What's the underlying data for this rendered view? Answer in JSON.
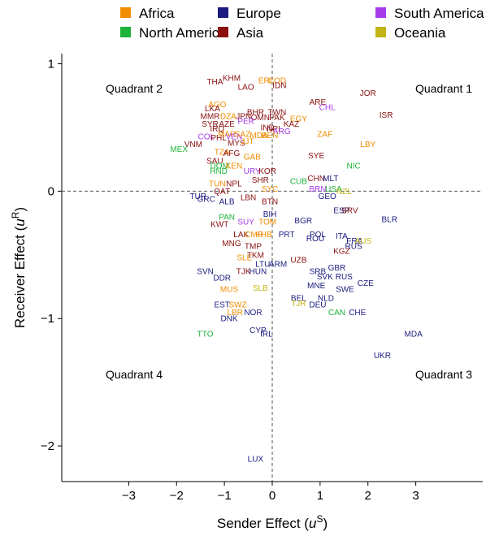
{
  "chart_data": {
    "type": "scatter",
    "xlabel": "Sender Effect (u^S)",
    "ylabel": "Receiver Effect (u^R)",
    "xlabel_parts": {
      "text": "Sender Effect (",
      "var": "u",
      "sup": "S",
      "close": ")"
    },
    "ylabel_parts": {
      "text": "Receiver Effect (",
      "var": "u",
      "sup": "R",
      "close": ")"
    },
    "xlim": [
      -4.4,
      4.4
    ],
    "ylim": [
      -2.28,
      1.08
    ],
    "x_ticks": [
      -3,
      -2,
      -1,
      0,
      1,
      2,
      3
    ],
    "y_ticks": [
      1,
      0,
      -1,
      -2
    ],
    "x_tick_labels": [
      "−3",
      "−2",
      "−1",
      "0",
      "1",
      "2",
      "3"
    ],
    "y_tick_labels": [
      "1",
      "0",
      "−1",
      "−2"
    ],
    "reference_lines": {
      "x": 0,
      "y": 0,
      "style": "dashed"
    },
    "grid": false,
    "legend_position": "top",
    "legend": [
      {
        "name": "Africa",
        "color": "#F28C00"
      },
      {
        "name": "North America",
        "color": "#1DB33A"
      },
      {
        "name": "Europe",
        "color": "#1A1A80"
      },
      {
        "name": "Asia",
        "color": "#8B0F0F"
      },
      {
        "name": "South America",
        "color": "#A53BEB"
      },
      {
        "name": "Oceania",
        "color": "#C2B414"
      }
    ],
    "quadrant_labels": [
      {
        "text": "Quadrant 1",
        "position": "top-right"
      },
      {
        "text": "Quadrant 2",
        "position": "top-left"
      },
      {
        "text": "Quadrant 3",
        "position": "bottom-right"
      },
      {
        "text": "Quadrant 4",
        "position": "bottom-left"
      }
    ],
    "points": [
      {
        "label": "THA",
        "region": "Asia",
        "x": -1.2,
        "y": 0.86
      },
      {
        "label": "KHM",
        "region": "Asia",
        "x": -0.85,
        "y": 0.89
      },
      {
        "label": "LAO",
        "region": "Asia",
        "x": -0.55,
        "y": 0.82
      },
      {
        "label": "ERI",
        "region": "Africa",
        "x": -0.15,
        "y": 0.87
      },
      {
        "label": "COD",
        "region": "Africa",
        "x": 0.1,
        "y": 0.87
      },
      {
        "label": "IDN",
        "region": "Asia",
        "x": 0.15,
        "y": 0.83
      },
      {
        "label": "JOR",
        "region": "Asia",
        "x": 2.0,
        "y": 0.77
      },
      {
        "label": "ARE",
        "region": "Asia",
        "x": 0.95,
        "y": 0.7
      },
      {
        "label": "CHL",
        "region": "South America",
        "x": 1.15,
        "y": 0.66
      },
      {
        "label": "AGO",
        "region": "Africa",
        "x": -1.15,
        "y": 0.68
      },
      {
        "label": "LKA",
        "region": "Asia",
        "x": -1.25,
        "y": 0.65
      },
      {
        "label": "TWN",
        "region": "Asia",
        "x": 0.1,
        "y": 0.62
      },
      {
        "label": "ISR",
        "region": "Asia",
        "x": 2.38,
        "y": 0.6
      },
      {
        "label": "MMR",
        "region": "Asia",
        "x": -1.3,
        "y": 0.59
      },
      {
        "label": "DZA",
        "region": "Africa",
        "x": -0.92,
        "y": 0.59
      },
      {
        "label": "JPN",
        "region": "Asia",
        "x": -0.6,
        "y": 0.59
      },
      {
        "label": "BHR",
        "region": "Asia",
        "x": -0.35,
        "y": 0.62
      },
      {
        "label": "OMN",
        "region": "Asia",
        "x": -0.25,
        "y": 0.58
      },
      {
        "label": "PAK",
        "region": "Asia",
        "x": 0.1,
        "y": 0.58
      },
      {
        "label": "EGY",
        "region": "Africa",
        "x": 0.55,
        "y": 0.57
      },
      {
        "label": "SYR",
        "region": "Asia",
        "x": -1.3,
        "y": 0.53
      },
      {
        "label": "AZE",
        "region": "Asia",
        "x": -0.95,
        "y": 0.53
      },
      {
        "label": "PER",
        "region": "South America",
        "x": -0.55,
        "y": 0.55
      },
      {
        "label": "KAZ",
        "region": "Asia",
        "x": 0.4,
        "y": 0.53
      },
      {
        "label": "IRQ",
        "region": "Asia",
        "x": -1.15,
        "y": 0.49
      },
      {
        "label": "IND",
        "region": "Asia",
        "x": -0.1,
        "y": 0.5
      },
      {
        "label": "NPL",
        "region": "Asia",
        "x": 0.05,
        "y": 0.49
      },
      {
        "label": "ARG",
        "region": "South America",
        "x": 0.2,
        "y": 0.47
      },
      {
        "label": "ZAF",
        "region": "Africa",
        "x": 1.1,
        "y": 0.45
      },
      {
        "label": "COL",
        "region": "South America",
        "x": -1.38,
        "y": 0.43
      },
      {
        "label": "PHL",
        "region": "Asia",
        "x": -1.12,
        "y": 0.42
      },
      {
        "label": "MAR",
        "region": "Africa",
        "x": -0.95,
        "y": 0.45
      },
      {
        "label": "VEN",
        "region": "South America",
        "x": -0.8,
        "y": 0.43
      },
      {
        "label": "SAZ",
        "region": "Africa",
        "x": -0.62,
        "y": 0.45
      },
      {
        "label": "MDA",
        "region": "Africa",
        "x": -0.28,
        "y": 0.44
      },
      {
        "label": "BEN",
        "region": "Africa",
        "x": -0.05,
        "y": 0.44
      },
      {
        "label": "MYS",
        "region": "Asia",
        "x": -0.75,
        "y": 0.38
      },
      {
        "label": "JJT",
        "region": "Africa",
        "x": -0.52,
        "y": 0.39
      },
      {
        "label": "VNM",
        "region": "Asia",
        "x": -1.65,
        "y": 0.37
      },
      {
        "label": "LBY",
        "region": "Africa",
        "x": 2.0,
        "y": 0.37
      },
      {
        "label": "MEX",
        "region": "North America",
        "x": -1.95,
        "y": 0.33
      },
      {
        "label": "TZA",
        "region": "Africa",
        "x": -1.05,
        "y": 0.31
      },
      {
        "label": "AFG",
        "region": "Asia",
        "x": -0.85,
        "y": 0.3
      },
      {
        "label": "SYE",
        "region": "Asia",
        "x": 0.92,
        "y": 0.28
      },
      {
        "label": "GAB",
        "region": "Africa",
        "x": -0.42,
        "y": 0.27
      },
      {
        "label": "SAU",
        "region": "Asia",
        "x": -1.2,
        "y": 0.24
      },
      {
        "label": "NIC",
        "region": "North America",
        "x": 1.7,
        "y": 0.2
      },
      {
        "label": "DOM",
        "region": "North America",
        "x": -1.1,
        "y": 0.2
      },
      {
        "label": "KEN",
        "region": "Africa",
        "x": -0.8,
        "y": 0.2
      },
      {
        "label": "HND",
        "region": "North America",
        "x": -1.12,
        "y": 0.16
      },
      {
        "label": "URY",
        "region": "South America",
        "x": -0.42,
        "y": 0.16
      },
      {
        "label": "KOR",
        "region": "Asia",
        "x": -0.1,
        "y": 0.16
      },
      {
        "label": "CUB",
        "region": "North America",
        "x": 0.55,
        "y": 0.08
      },
      {
        "label": "CHN",
        "region": "Asia",
        "x": 0.92,
        "y": 0.1
      },
      {
        "label": "MLT",
        "region": "Europe",
        "x": 1.22,
        "y": 0.1
      },
      {
        "label": "TUN",
        "region": "Africa",
        "x": -1.15,
        "y": 0.06
      },
      {
        "label": "NPL",
        "region": "Asia",
        "x": -0.8,
        "y": 0.06
      },
      {
        "label": "SHR",
        "region": "Asia",
        "x": -0.25,
        "y": 0.09
      },
      {
        "label": "BRN",
        "region": "South America",
        "x": 0.95,
        "y": 0.02
      },
      {
        "label": "USA",
        "region": "North America",
        "x": 1.28,
        "y": 0.02
      },
      {
        "label": "QAT",
        "region": "Asia",
        "x": -1.05,
        "y": 0.0
      },
      {
        "label": "SYC",
        "region": "Africa",
        "x": -0.05,
        "y": 0.02
      },
      {
        "label": "NZL",
        "region": "Oceania",
        "x": 1.5,
        "y": 0.0
      },
      {
        "label": "GEO",
        "region": "Europe",
        "x": 1.15,
        "y": -0.04
      },
      {
        "label": "TUR",
        "region": "Europe",
        "x": -1.55,
        "y": -0.04
      },
      {
        "label": "GRC",
        "region": "Europe",
        "x": -1.38,
        "y": -0.06
      },
      {
        "label": "ALB",
        "region": "Europe",
        "x": -0.95,
        "y": -0.08
      },
      {
        "label": "LBN",
        "region": "Asia",
        "x": -0.5,
        "y": -0.05
      },
      {
        "label": "BTN",
        "region": "Asia",
        "x": -0.05,
        "y": -0.08
      },
      {
        "label": "ESP",
        "region": "Europe",
        "x": 1.45,
        "y": -0.15
      },
      {
        "label": "SRV",
        "region": "Asia",
        "x": 1.62,
        "y": -0.15
      },
      {
        "label": "BIH",
        "region": "Europe",
        "x": -0.05,
        "y": -0.18
      },
      {
        "label": "PAN",
        "region": "North America",
        "x": -0.95,
        "y": -0.2
      },
      {
        "label": "BLR",
        "region": "Europe",
        "x": 2.45,
        "y": -0.22
      },
      {
        "label": "BGR",
        "region": "Europe",
        "x": 0.65,
        "y": -0.23
      },
      {
        "label": "SUY",
        "region": "South America",
        "x": -0.55,
        "y": -0.24
      },
      {
        "label": "TOM",
        "region": "Africa",
        "x": -0.1,
        "y": -0.24
      },
      {
        "label": "KWT",
        "region": "Asia",
        "x": -1.1,
        "y": -0.26
      },
      {
        "label": "PRT",
        "region": "Europe",
        "x": 0.3,
        "y": -0.34
      },
      {
        "label": "POL",
        "region": "Europe",
        "x": 0.95,
        "y": -0.34
      },
      {
        "label": "ROU",
        "region": "Europe",
        "x": 0.9,
        "y": -0.37
      },
      {
        "label": "ITA",
        "region": "Europe",
        "x": 1.45,
        "y": -0.35
      },
      {
        "label": "LAK",
        "region": "Asia",
        "x": -0.65,
        "y": -0.34
      },
      {
        "label": "CMR",
        "region": "Africa",
        "x": -0.38,
        "y": -0.34
      },
      {
        "label": "KHB",
        "region": "Africa",
        "x": -0.18,
        "y": -0.34
      },
      {
        "label": "FRA",
        "region": "Europe",
        "x": 1.72,
        "y": -0.39
      },
      {
        "label": "AUS",
        "region": "Oceania",
        "x": 1.9,
        "y": -0.39
      },
      {
        "label": "MNG",
        "region": "Asia",
        "x": -0.85,
        "y": -0.41
      },
      {
        "label": "TMP",
        "region": "Asia",
        "x": -0.4,
        "y": -0.43
      },
      {
        "label": "RUS",
        "region": "Europe",
        "x": 1.7,
        "y": -0.43
      },
      {
        "label": "KGZ",
        "region": "Asia",
        "x": 1.45,
        "y": -0.47
      },
      {
        "label": "SLE",
        "region": "Africa",
        "x": -0.58,
        "y": -0.52
      },
      {
        "label": "TKM",
        "region": "Asia",
        "x": -0.35,
        "y": -0.5
      },
      {
        "label": "UZB",
        "region": "Asia",
        "x": 0.55,
        "y": -0.54
      },
      {
        "label": "LTU",
        "region": "Europe",
        "x": -0.2,
        "y": -0.57
      },
      {
        "label": "ARM",
        "region": "Europe",
        "x": 0.12,
        "y": -0.57
      },
      {
        "label": "SVN",
        "region": "Europe",
        "x": -1.4,
        "y": -0.63
      },
      {
        "label": "TJK",
        "region": "Asia",
        "x": -0.6,
        "y": -0.63
      },
      {
        "label": "HUN",
        "region": "Europe",
        "x": -0.3,
        "y": -0.63
      },
      {
        "label": "SRB",
        "region": "Europe",
        "x": 0.95,
        "y": -0.63
      },
      {
        "label": "GBR",
        "region": "Europe",
        "x": 1.35,
        "y": -0.6
      },
      {
        "label": "SVK",
        "region": "Europe",
        "x": 1.1,
        "y": -0.67
      },
      {
        "label": "RUS",
        "region": "Europe",
        "x": 1.5,
        "y": -0.67
      },
      {
        "label": "DDR",
        "region": "Europe",
        "x": -1.05,
        "y": -0.68
      },
      {
        "label": "MNE",
        "region": "Europe",
        "x": 0.92,
        "y": -0.74
      },
      {
        "label": "CZE",
        "region": "Europe",
        "x": 1.95,
        "y": -0.72
      },
      {
        "label": "MUS",
        "region": "Africa",
        "x": -0.9,
        "y": -0.77
      },
      {
        "label": "SLB",
        "region": "Oceania",
        "x": -0.25,
        "y": -0.76
      },
      {
        "label": "SWE",
        "region": "Europe",
        "x": 1.52,
        "y": -0.77
      },
      {
        "label": "BEL",
        "region": "Europe",
        "x": 0.55,
        "y": -0.84
      },
      {
        "label": "NLD",
        "region": "Europe",
        "x": 1.12,
        "y": -0.84
      },
      {
        "label": "EST",
        "region": "Europe",
        "x": -1.05,
        "y": -0.89
      },
      {
        "label": "SWZ",
        "region": "Africa",
        "x": -0.72,
        "y": -0.89
      },
      {
        "label": "TJR",
        "region": "Oceania",
        "x": 0.55,
        "y": -0.88
      },
      {
        "label": "DEU",
        "region": "Europe",
        "x": 0.95,
        "y": -0.89
      },
      {
        "label": "LBR",
        "region": "Africa",
        "x": -0.78,
        "y": -0.95
      },
      {
        "label": "NOR",
        "region": "Europe",
        "x": -0.4,
        "y": -0.95
      },
      {
        "label": "CAN",
        "region": "North America",
        "x": 1.35,
        "y": -0.95
      },
      {
        "label": "CHE",
        "region": "Europe",
        "x": 1.78,
        "y": -0.95
      },
      {
        "label": "DNK",
        "region": "Europe",
        "x": -0.9,
        "y": -1.0
      },
      {
        "label": "CYP",
        "region": "Europe",
        "x": -0.3,
        "y": -1.09
      },
      {
        "label": "TTO",
        "region": "North America",
        "x": -1.4,
        "y": -1.12
      },
      {
        "label": "IRL",
        "region": "Europe",
        "x": -0.12,
        "y": -1.12
      },
      {
        "label": "MDA",
        "region": "Europe",
        "x": 2.95,
        "y": -1.12
      },
      {
        "label": "UKR",
        "region": "Europe",
        "x": 2.3,
        "y": -1.29
      },
      {
        "label": "LUX",
        "region": "Europe",
        "x": -0.35,
        "y": -2.1
      }
    ]
  }
}
